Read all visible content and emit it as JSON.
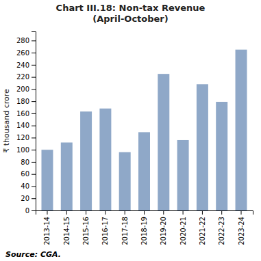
{
  "chart_data": {
    "type": "bar",
    "title": "Chart III.18: Non-tax Revenue\n(April-October)",
    "categories": [
      "2013-14",
      "2014-15",
      "2015-16",
      "2016-17",
      "2017-18",
      "2018-19",
      "2019-20",
      "2020-21",
      "2021-22",
      "2022-23",
      "2023-24"
    ],
    "values": [
      100,
      112,
      163,
      168,
      96,
      129,
      225,
      116,
      208,
      179,
      265
    ],
    "color": "#8fa8c8",
    "ylabel": "₹ thousand crore",
    "ylim": [
      0,
      295
    ],
    "yticks": [
      0,
      20,
      40,
      60,
      80,
      100,
      120,
      140,
      160,
      180,
      200,
      220,
      240,
      260,
      280
    ],
    "source": "Source: CGA.",
    "grid": false
  }
}
